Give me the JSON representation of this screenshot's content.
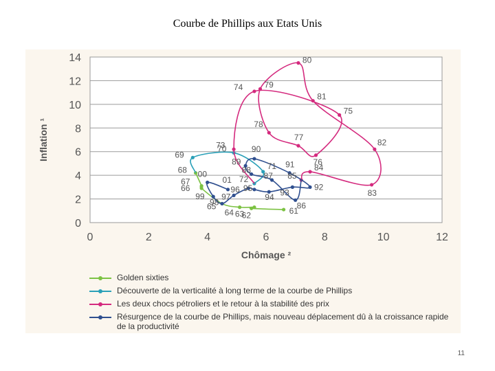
{
  "title": "Courbe de Phillips aux Etats Unis",
  "page_number": "11",
  "chart_data": {
    "type": "line",
    "title": "Courbe de Phillips aux Etats Unis",
    "xlabel": "Chômage ²",
    "ylabel": "Inflation ¹",
    "xlim": [
      0,
      12
    ],
    "ylim": [
      0,
      14
    ],
    "xticks": [
      "0",
      "2",
      "4",
      "6",
      "8",
      "10",
      "12"
    ],
    "yticks": [
      "0",
      "2",
      "4",
      "6",
      "8",
      "10",
      "12",
      "14"
    ],
    "grid": true,
    "legend_position": "bottom",
    "series": [
      {
        "name": "Golden sixties",
        "color": "#7cc243",
        "points": [
          {
            "label": "61",
            "x": 6.6,
            "y": 1.1
          },
          {
            "label": "62",
            "x": 5.5,
            "y": 1.2
          },
          {
            "label": "63",
            "x": 5.6,
            "y": 1.3
          },
          {
            "label": "64",
            "x": 5.1,
            "y": 1.3
          },
          {
            "label": "65",
            "x": 4.5,
            "y": 1.6
          },
          {
            "label": "66",
            "x": 3.8,
            "y": 2.9
          },
          {
            "label": "67",
            "x": 3.8,
            "y": 3.1
          },
          {
            "label": "68",
            "x": 3.6,
            "y": 4.2
          }
        ]
      },
      {
        "name": "Découverte de la verticalité à long terme de la courbe de Phillips",
        "color": "#2aa0b8",
        "points": [
          {
            "label": "69",
            "x": 3.5,
            "y": 5.5
          },
          {
            "label": "70",
            "x": 4.9,
            "y": 5.9
          },
          {
            "label": "71",
            "x": 5.9,
            "y": 4.3
          },
          {
            "label": "72",
            "x": 5.6,
            "y": 3.3
          }
        ]
      },
      {
        "name": "Les deux chocs pétroliers et le retour à la stabilité des prix",
        "color": "#d42a7e",
        "points": [
          {
            "label": "73",
            "x": 4.9,
            "y": 6.2
          },
          {
            "label": "74",
            "x": 5.6,
            "y": 11.1
          },
          {
            "label": "75",
            "x": 8.5,
            "y": 9.1
          },
          {
            "label": "76",
            "x": 7.7,
            "y": 5.7
          },
          {
            "label": "77",
            "x": 7.1,
            "y": 6.5
          },
          {
            "label": "78",
            "x": 6.1,
            "y": 7.6
          },
          {
            "label": "79",
            "x": 5.8,
            "y": 11.3
          },
          {
            "label": "80",
            "x": 7.1,
            "y": 13.5
          },
          {
            "label": "81",
            "x": 7.6,
            "y": 10.3
          },
          {
            "label": "82",
            "x": 9.7,
            "y": 6.2
          },
          {
            "label": "83",
            "x": 9.6,
            "y": 3.2
          },
          {
            "label": "84",
            "x": 7.5,
            "y": 4.3
          },
          {
            "label": "85",
            "x": 7.2,
            "y": 3.6
          }
        ]
      },
      {
        "name": "Résurgence de la courbe de Phillips, mais nouveau déplacement dû à la croissance rapide de la productivité",
        "color": "#2f4f8f",
        "points": [
          {
            "label": "86",
            "x": 7.0,
            "y": 1.9
          },
          {
            "label": "87",
            "x": 6.2,
            "y": 3.6
          },
          {
            "label": "88",
            "x": 5.5,
            "y": 4.1
          },
          {
            "label": "89",
            "x": 5.3,
            "y": 4.8
          },
          {
            "label": "90",
            "x": 5.6,
            "y": 5.4
          },
          {
            "label": "91",
            "x": 6.8,
            "y": 4.2
          },
          {
            "label": "92",
            "x": 7.5,
            "y": 3.0
          },
          {
            "label": "93",
            "x": 6.9,
            "y": 3.0
          },
          {
            "label": "94",
            "x": 6.1,
            "y": 2.6
          },
          {
            "label": "95",
            "x": 5.6,
            "y": 2.8
          },
          {
            "label": "96",
            "x": 5.4,
            "y": 2.9
          },
          {
            "label": "97",
            "x": 4.9,
            "y": 2.3
          },
          {
            "label": "98",
            "x": 4.5,
            "y": 1.6
          },
          {
            "label": "99",
            "x": 4.2,
            "y": 2.2
          },
          {
            "label": "00",
            "x": 4.0,
            "y": 3.4
          },
          {
            "label": "01",
            "x": 4.7,
            "y": 2.8
          }
        ]
      }
    ]
  }
}
